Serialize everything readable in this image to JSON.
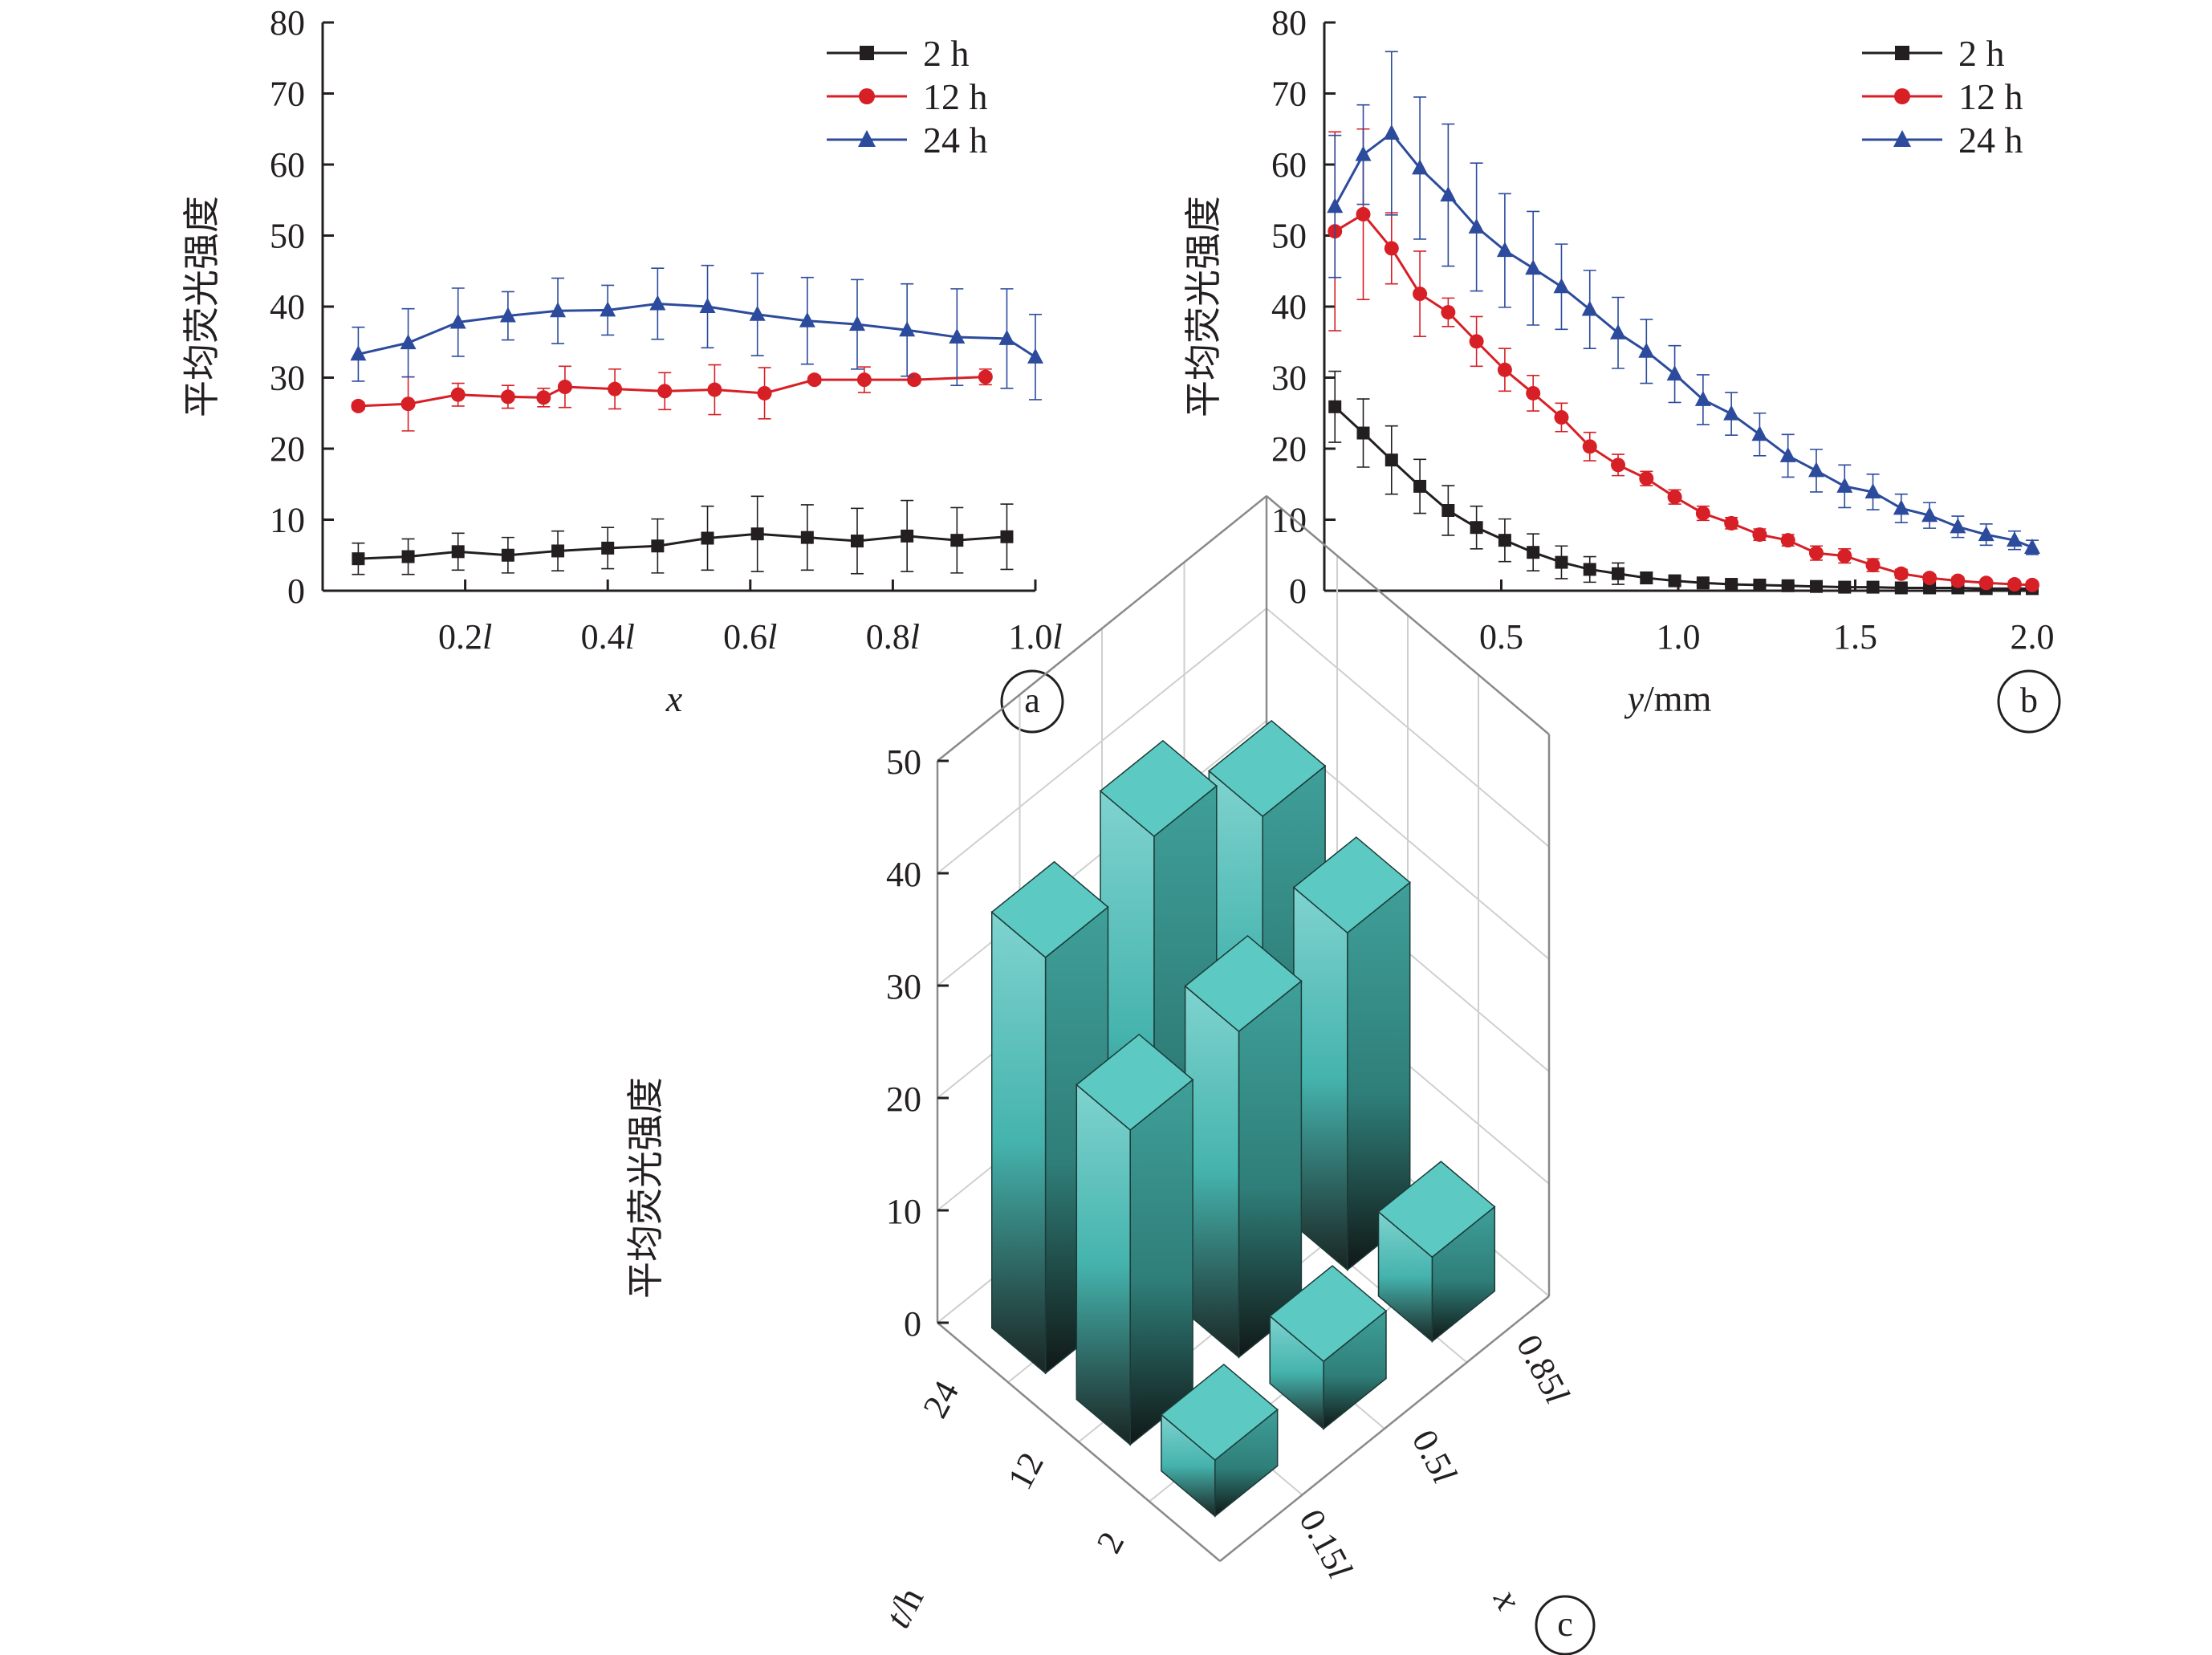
{
  "chart_data": [
    {
      "panel": "a",
      "type": "line",
      "xlabel": "x",
      "ylabel": "平均荧光强度",
      "xlim": [
        0.0,
        1.0
      ],
      "ylim": [
        0,
        80
      ],
      "y_ticks": [
        0,
        10,
        20,
        30,
        40,
        50,
        60,
        70,
        80
      ],
      "x_ticks": [
        {
          "value": 0.2,
          "num": "0.2",
          "unit": "l"
        },
        {
          "value": 0.4,
          "num": "0.4",
          "unit": "l"
        },
        {
          "value": 0.6,
          "num": "0.6",
          "unit": "l"
        },
        {
          "value": 0.8,
          "num": "0.8",
          "unit": "l"
        },
        {
          "value": 1.0,
          "num": "1.0",
          "unit": "l"
        }
      ],
      "legend_position": "top-right",
      "series": [
        {
          "name": "2 h",
          "color": "#231f20",
          "marker": "square",
          "points": [
            [
              0.05,
              4.5,
              2.2
            ],
            [
              0.12,
              4.8,
              2.5
            ],
            [
              0.19,
              5.5,
              2.6
            ],
            [
              0.26,
              5.0,
              2.5
            ],
            [
              0.33,
              5.6,
              2.8
            ],
            [
              0.4,
              6.0,
              2.9
            ],
            [
              0.47,
              6.3,
              3.8
            ],
            [
              0.54,
              7.4,
              4.5
            ],
            [
              0.61,
              8.0,
              5.3
            ],
            [
              0.68,
              7.5,
              4.6
            ],
            [
              0.75,
              7.0,
              4.6
            ],
            [
              0.82,
              7.7,
              5.0
            ],
            [
              0.89,
              7.1,
              4.6
            ],
            [
              0.96,
              7.6,
              4.6
            ]
          ]
        },
        {
          "name": "12 h",
          "color": "#d71f26",
          "marker": "circle",
          "points": [
            [
              0.05,
              26.0,
              0.5
            ],
            [
              0.12,
              26.3,
              3.8
            ],
            [
              0.19,
              27.6,
              1.6
            ],
            [
              0.26,
              27.3,
              1.6
            ],
            [
              0.31,
              27.2,
              1.3
            ],
            [
              0.34,
              28.7,
              2.9
            ],
            [
              0.41,
              28.4,
              2.8
            ],
            [
              0.48,
              28.1,
              2.6
            ],
            [
              0.55,
              28.3,
              3.5
            ],
            [
              0.62,
              27.8,
              3.6
            ],
            [
              0.69,
              29.7,
              0.5
            ],
            [
              0.76,
              29.7,
              1.8
            ],
            [
              0.83,
              29.7,
              0.5
            ],
            [
              0.93,
              30.1,
              1.1
            ]
          ]
        },
        {
          "name": "24 h",
          "color": "#2c4b9d",
          "marker": "triangle",
          "points": [
            [
              0.05,
              33.3,
              3.8
            ],
            [
              0.12,
              34.9,
              4.8
            ],
            [
              0.19,
              37.8,
              4.8
            ],
            [
              0.26,
              38.7,
              3.4
            ],
            [
              0.33,
              39.4,
              4.6
            ],
            [
              0.4,
              39.5,
              3.5
            ],
            [
              0.47,
              40.4,
              5.0
            ],
            [
              0.54,
              40.0,
              5.8
            ],
            [
              0.61,
              38.9,
              5.8
            ],
            [
              0.68,
              38.0,
              6.1
            ],
            [
              0.75,
              37.5,
              6.3
            ],
            [
              0.82,
              36.7,
              6.5
            ],
            [
              0.89,
              35.7,
              6.8
            ],
            [
              0.96,
              35.5,
              7.0
            ],
            [
              1.0,
              32.9,
              6.0
            ]
          ]
        }
      ],
      "panel_label": "a"
    },
    {
      "panel": "b",
      "type": "line",
      "xlabel": "y/mm",
      "ylabel": "平均荧光强度",
      "xlim": [
        0.0,
        2.0
      ],
      "ylim": [
        0,
        80
      ],
      "y_ticks": [
        0,
        10,
        20,
        30,
        40,
        50,
        60,
        70,
        80
      ],
      "x_ticks": [
        "0.5",
        "1.0",
        "1.5",
        "2.0"
      ],
      "legend_position": "top-right",
      "series": [
        {
          "name": "2 h",
          "color": "#231f20",
          "marker": "square",
          "points": [
            [
              0.03,
              25.9,
              5.0
            ],
            [
              0.11,
              22.2,
              4.8
            ],
            [
              0.19,
              18.4,
              4.8
            ],
            [
              0.27,
              14.7,
              3.8
            ],
            [
              0.35,
              11.3,
              3.5
            ],
            [
              0.43,
              8.9,
              3.0
            ],
            [
              0.51,
              7.1,
              3.0
            ],
            [
              0.59,
              5.4,
              2.6
            ],
            [
              0.67,
              4.0,
              2.3
            ],
            [
              0.75,
              3.0,
              1.8
            ],
            [
              0.83,
              2.4,
              1.5
            ],
            [
              0.91,
              1.8,
              0.8
            ],
            [
              0.99,
              1.4,
              0.6
            ],
            [
              1.07,
              1.1,
              0.4
            ],
            [
              1.15,
              0.9,
              0.3
            ],
            [
              1.23,
              0.8,
              0.3
            ],
            [
              1.31,
              0.7,
              0.3
            ],
            [
              1.39,
              0.6,
              0.3
            ],
            [
              1.47,
              0.5,
              0.2
            ],
            [
              1.55,
              0.5,
              0.2
            ],
            [
              1.63,
              0.4,
              0.2
            ],
            [
              1.71,
              0.4,
              0.2
            ],
            [
              1.79,
              0.4,
              0.2
            ],
            [
              1.87,
              0.3,
              0.2
            ],
            [
              1.95,
              0.3,
              0.2
            ],
            [
              2.0,
              0.3,
              0.2
            ]
          ]
        },
        {
          "name": "12 h",
          "color": "#d71f26",
          "marker": "circle",
          "points": [
            [
              0.03,
              50.6,
              14.0
            ],
            [
              0.11,
              53.0,
              12.0
            ],
            [
              0.19,
              48.2,
              5.0
            ],
            [
              0.27,
              41.8,
              6.0
            ],
            [
              0.35,
              39.2,
              2.0
            ],
            [
              0.43,
              35.1,
              3.5
            ],
            [
              0.51,
              31.1,
              3.0
            ],
            [
              0.59,
              27.8,
              2.5
            ],
            [
              0.67,
              24.4,
              2.0
            ],
            [
              0.75,
              20.3,
              2.0
            ],
            [
              0.83,
              17.7,
              1.5
            ],
            [
              0.91,
              15.8,
              1.0
            ],
            [
              0.99,
              13.2,
              1.0
            ],
            [
              1.07,
              10.9,
              1.0
            ],
            [
              1.15,
              9.5,
              0.8
            ],
            [
              1.23,
              7.9,
              0.8
            ],
            [
              1.31,
              7.1,
              0.8
            ],
            [
              1.39,
              5.3,
              1.0
            ],
            [
              1.47,
              4.9,
              1.0
            ],
            [
              1.55,
              3.6,
              0.9
            ],
            [
              1.63,
              2.4,
              0.6
            ],
            [
              1.71,
              1.8,
              0.5
            ],
            [
              1.79,
              1.4,
              0.5
            ],
            [
              1.87,
              1.1,
              0.4
            ],
            [
              1.95,
              0.9,
              0.4
            ],
            [
              2.0,
              0.8,
              0.4
            ]
          ]
        },
        {
          "name": "24 h",
          "color": "#2c4b9d",
          "marker": "triangle",
          "points": [
            [
              0.03,
              54.1,
              10.0
            ],
            [
              0.11,
              61.4,
              7.0
            ],
            [
              0.19,
              64.4,
              11.5
            ],
            [
              0.27,
              59.5,
              10.0
            ],
            [
              0.35,
              55.7,
              10.0
            ],
            [
              0.43,
              51.2,
              9.0
            ],
            [
              0.51,
              47.9,
              8.0
            ],
            [
              0.59,
              45.4,
              8.0
            ],
            [
              0.67,
              42.8,
              6.0
            ],
            [
              0.75,
              39.6,
              5.5
            ],
            [
              0.83,
              36.3,
              5.0
            ],
            [
              0.91,
              33.7,
              4.5
            ],
            [
              0.99,
              30.5,
              4.0
            ],
            [
              1.07,
              26.9,
              3.5
            ],
            [
              1.15,
              24.9,
              3.0
            ],
            [
              1.23,
              22.0,
              3.0
            ],
            [
              1.31,
              19.0,
              3.0
            ],
            [
              1.39,
              16.9,
              3.0
            ],
            [
              1.47,
              14.7,
              3.0
            ],
            [
              1.55,
              13.9,
              2.5
            ],
            [
              1.63,
              11.6,
              2.0
            ],
            [
              1.71,
              10.6,
              1.8
            ],
            [
              1.79,
              9.0,
              1.5
            ],
            [
              1.87,
              7.9,
              1.5
            ],
            [
              1.95,
              7.1,
              1.3
            ],
            [
              2.0,
              6.1,
              1.0
            ]
          ]
        }
      ],
      "panel_label": "b"
    },
    {
      "panel": "c",
      "type": "bar3d",
      "ylabel": "平均荧光强度",
      "zlim": [
        0,
        50
      ],
      "z_ticks": [
        "0",
        "10",
        "20",
        "30",
        "40",
        "50"
      ],
      "t_label": "t/h",
      "t_categories": [
        "24",
        "12",
        "2"
      ],
      "x_label": "x",
      "x_categories": [
        "0.15l",
        "0.5l",
        "0.85l"
      ],
      "values": [
        {
          "t": "24",
          "x": "0.15l",
          "value": 37
        },
        {
          "t": "24",
          "x": "0.5l",
          "value": 40
        },
        {
          "t": "24",
          "x": "0.85l",
          "value": 34
        },
        {
          "t": "12",
          "x": "0.15l",
          "value": 28
        },
        {
          "t": "12",
          "x": "0.5l",
          "value": 29
        },
        {
          "t": "12",
          "x": "0.85l",
          "value": 30
        },
        {
          "t": "2",
          "x": "0.15l",
          "value": 5
        },
        {
          "t": "2",
          "x": "0.5l",
          "value": 6
        },
        {
          "t": "2",
          "x": "0.85l",
          "value": 7.5
        }
      ],
      "bar_color": "#4fc3bd",
      "panel_label": "c"
    }
  ]
}
